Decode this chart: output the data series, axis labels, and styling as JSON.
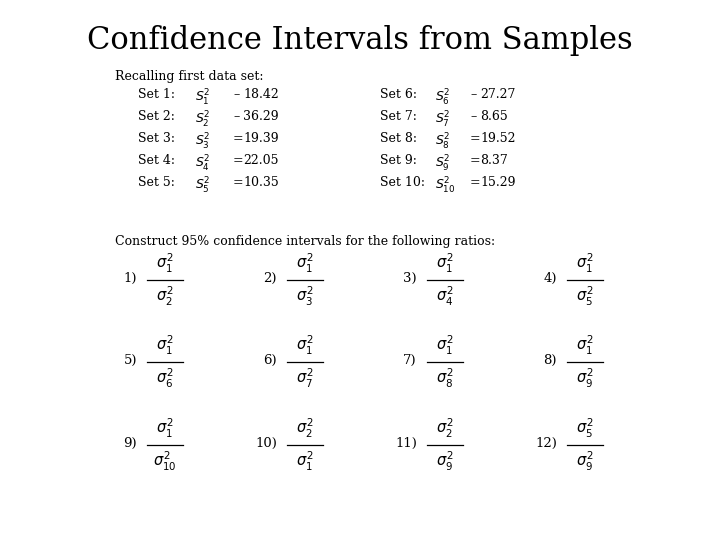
{
  "title": "Confidence Intervals from Samples",
  "title_fontsize": 22,
  "background_color": "#ffffff",
  "text_color": "#000000",
  "recalling_header": "Recalling first data set:",
  "sets_left": [
    {
      "label": "Set 1:",
      "expr": "$S_1^2$",
      "sep": "–",
      "val": "18.42"
    },
    {
      "label": "Set 2:",
      "expr": "$S_2^2$",
      "sep": "–",
      "val": "36.29"
    },
    {
      "label": "Set 3:",
      "expr": "$S_3^2$",
      "sep": "=",
      "val": "19.39"
    },
    {
      "label": "Set 4:",
      "expr": "$S_4^2$",
      "sep": "=",
      "val": "22.05"
    },
    {
      "label": "Set 5:",
      "expr": "$S_5^2$",
      "sep": "=",
      "val": "10.35"
    }
  ],
  "sets_right": [
    {
      "label": "Set 6:",
      "expr": "$S_6^2$",
      "sep": "–",
      "val": "27.27"
    },
    {
      "label": "Set 7:",
      "expr": "$S_7^2$",
      "sep": "–",
      "val": "8.65"
    },
    {
      "label": "Set 8:",
      "expr": "$S_8^2$",
      "sep": "=",
      "val": "19.52"
    },
    {
      "label": "Set 9:",
      "expr": "$S_9^2$",
      "sep": "=",
      "val": "8.37"
    },
    {
      "label": "Set 10:",
      "expr": "$S_{10}^2$",
      "sep": "=",
      "val": "15.29"
    }
  ],
  "construct_text": "Construct 95% confidence intervals for the following ratios:",
  "fractions_row1": [
    {
      "num": "$\\sigma_1^2$",
      "den": "$\\sigma_2^2$",
      "label": "1)"
    },
    {
      "num": "$\\sigma_1^2$",
      "den": "$\\sigma_3^2$",
      "label": "2)"
    },
    {
      "num": "$\\sigma_1^2$",
      "den": "$\\sigma_4^2$",
      "label": "3)"
    },
    {
      "num": "$\\sigma_1^2$",
      "den": "$\\sigma_5^2$",
      "label": "4)"
    }
  ],
  "fractions_row2": [
    {
      "num": "$\\sigma_1^2$",
      "den": "$\\sigma_6^2$",
      "label": "5)"
    },
    {
      "num": "$\\sigma_1^2$",
      "den": "$\\sigma_7^2$",
      "label": "6)"
    },
    {
      "num": "$\\sigma_1^2$",
      "den": "$\\sigma_8^2$",
      "label": "7)"
    },
    {
      "num": "$\\sigma_1^2$",
      "den": "$\\sigma_9^2$",
      "label": "8)"
    }
  ],
  "fractions_row3": [
    {
      "num": "$\\sigma_1^2$",
      "den": "$\\sigma_{10}^2$",
      "label": "9)"
    },
    {
      "num": "$\\sigma_2^2$",
      "den": "$\\sigma_1^2$",
      "label": "10)"
    },
    {
      "num": "$\\sigma_2^2$",
      "den": "$\\sigma_9^2$",
      "label": "11)"
    },
    {
      "num": "$\\sigma_5^2$",
      "den": "$\\sigma_9^2$",
      "label": "12)"
    }
  ],
  "fs_body": 9.0,
  "fs_math": 10.5,
  "fs_label": 9.5
}
